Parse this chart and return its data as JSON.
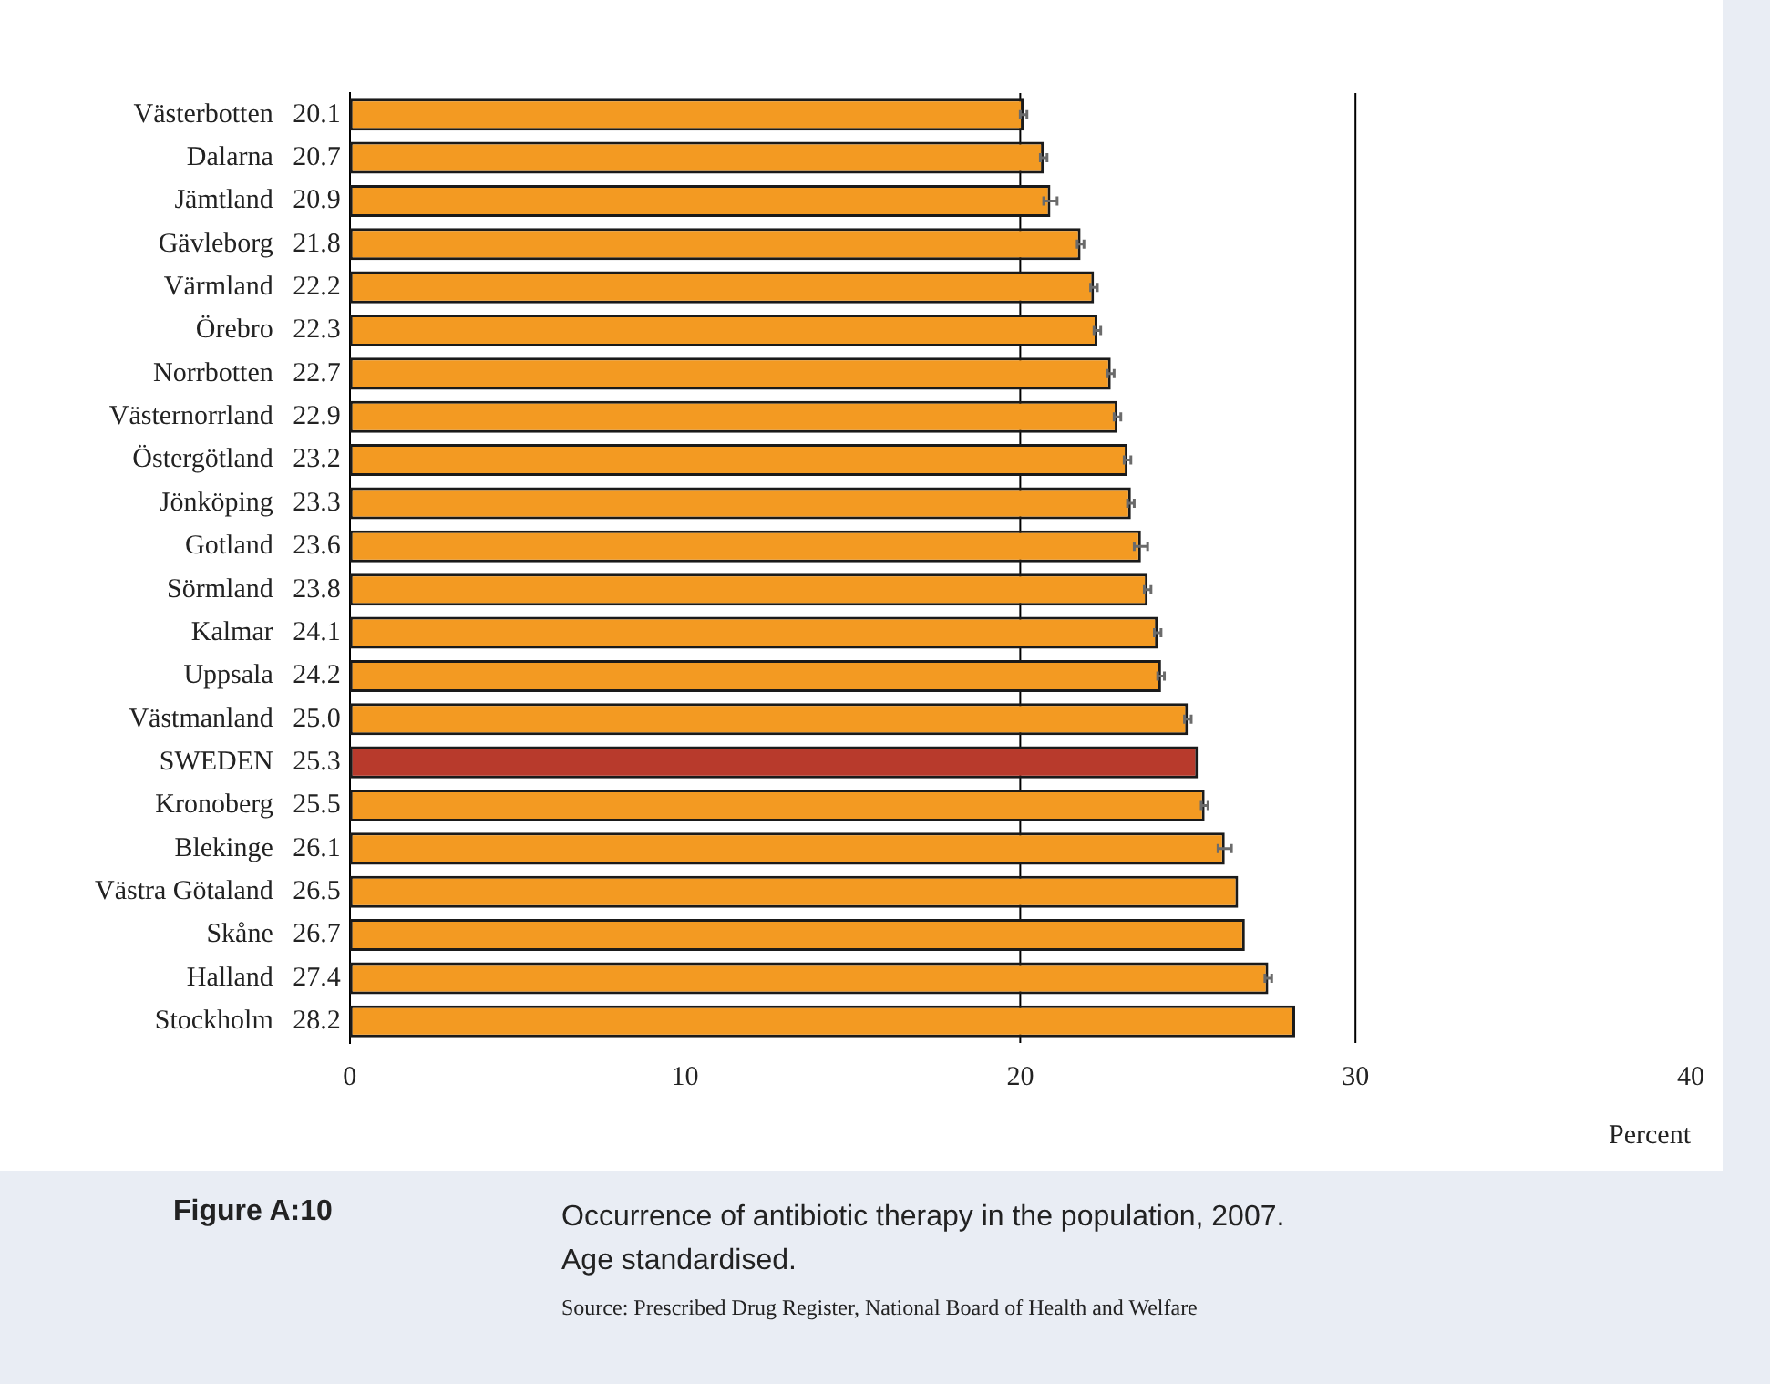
{
  "chart_data": {
    "type": "bar",
    "orientation": "horizontal",
    "title": "Occurrence of antibiotic therapy in the population, 2007. Age standardised.",
    "xlabel": "Percent",
    "categories": [
      "Västerbotten",
      "Dalarna",
      "Jämtland",
      "Gävleborg",
      "Värmland",
      "Örebro",
      "Norrbotten",
      "Västernorrland",
      "Östergötland",
      "Jönköping",
      "Gotland",
      "Sörmland",
      "Kalmar",
      "Uppsala",
      "Västmanland",
      "SWEDEN",
      "Kronoberg",
      "Blekinge",
      "Västra Götaland",
      "Skåne",
      "Halland",
      "Stockholm"
    ],
    "values": [
      20.1,
      20.7,
      20.9,
      21.8,
      22.2,
      22.3,
      22.7,
      22.9,
      23.2,
      23.3,
      23.6,
      23.8,
      24.1,
      24.2,
      25.0,
      25.3,
      25.5,
      26.1,
      26.5,
      26.7,
      27.4,
      28.2
    ],
    "value_labels": [
      "20.1",
      "20.7",
      "20.9",
      "21.8",
      "22.2",
      "22.3",
      "22.7",
      "22.9",
      "23.2",
      "23.3",
      "23.6",
      "23.8",
      "24.1",
      "24.2",
      "25.0",
      "25.3",
      "25.5",
      "26.1",
      "26.5",
      "26.7",
      "27.4",
      "28.2"
    ],
    "errors": [
      0.1,
      0.1,
      0.2,
      0.1,
      0.1,
      0.1,
      0.1,
      0.1,
      0.1,
      0.1,
      0.2,
      0.1,
      0.1,
      0.1,
      0.1,
      null,
      0.1,
      0.2,
      null,
      null,
      0.1,
      null
    ],
    "colors": [
      "#f39a22",
      "#f39a22",
      "#f39a22",
      "#f39a22",
      "#f39a22",
      "#f39a22",
      "#f39a22",
      "#f39a22",
      "#f39a22",
      "#f39a22",
      "#f39a22",
      "#f39a22",
      "#f39a22",
      "#f39a22",
      "#f39a22",
      "#b83a2c",
      "#f39a22",
      "#f39a22",
      "#f39a22",
      "#f39a22",
      "#f39a22",
      "#f39a22"
    ],
    "xlim": [
      0,
      40
    ],
    "xticks": [
      0,
      10,
      20,
      30,
      40
    ],
    "grid": false,
    "legend": false,
    "ref_lines": [
      {
        "axis": "x",
        "value": 20,
        "color": "#000000"
      },
      {
        "axis": "x",
        "value": 30,
        "color": "#000000"
      }
    ],
    "annotations": [
      "Figure A:10",
      "Source: Prescribed Drug Register, National Board of Health and Welfare"
    ]
  }
}
